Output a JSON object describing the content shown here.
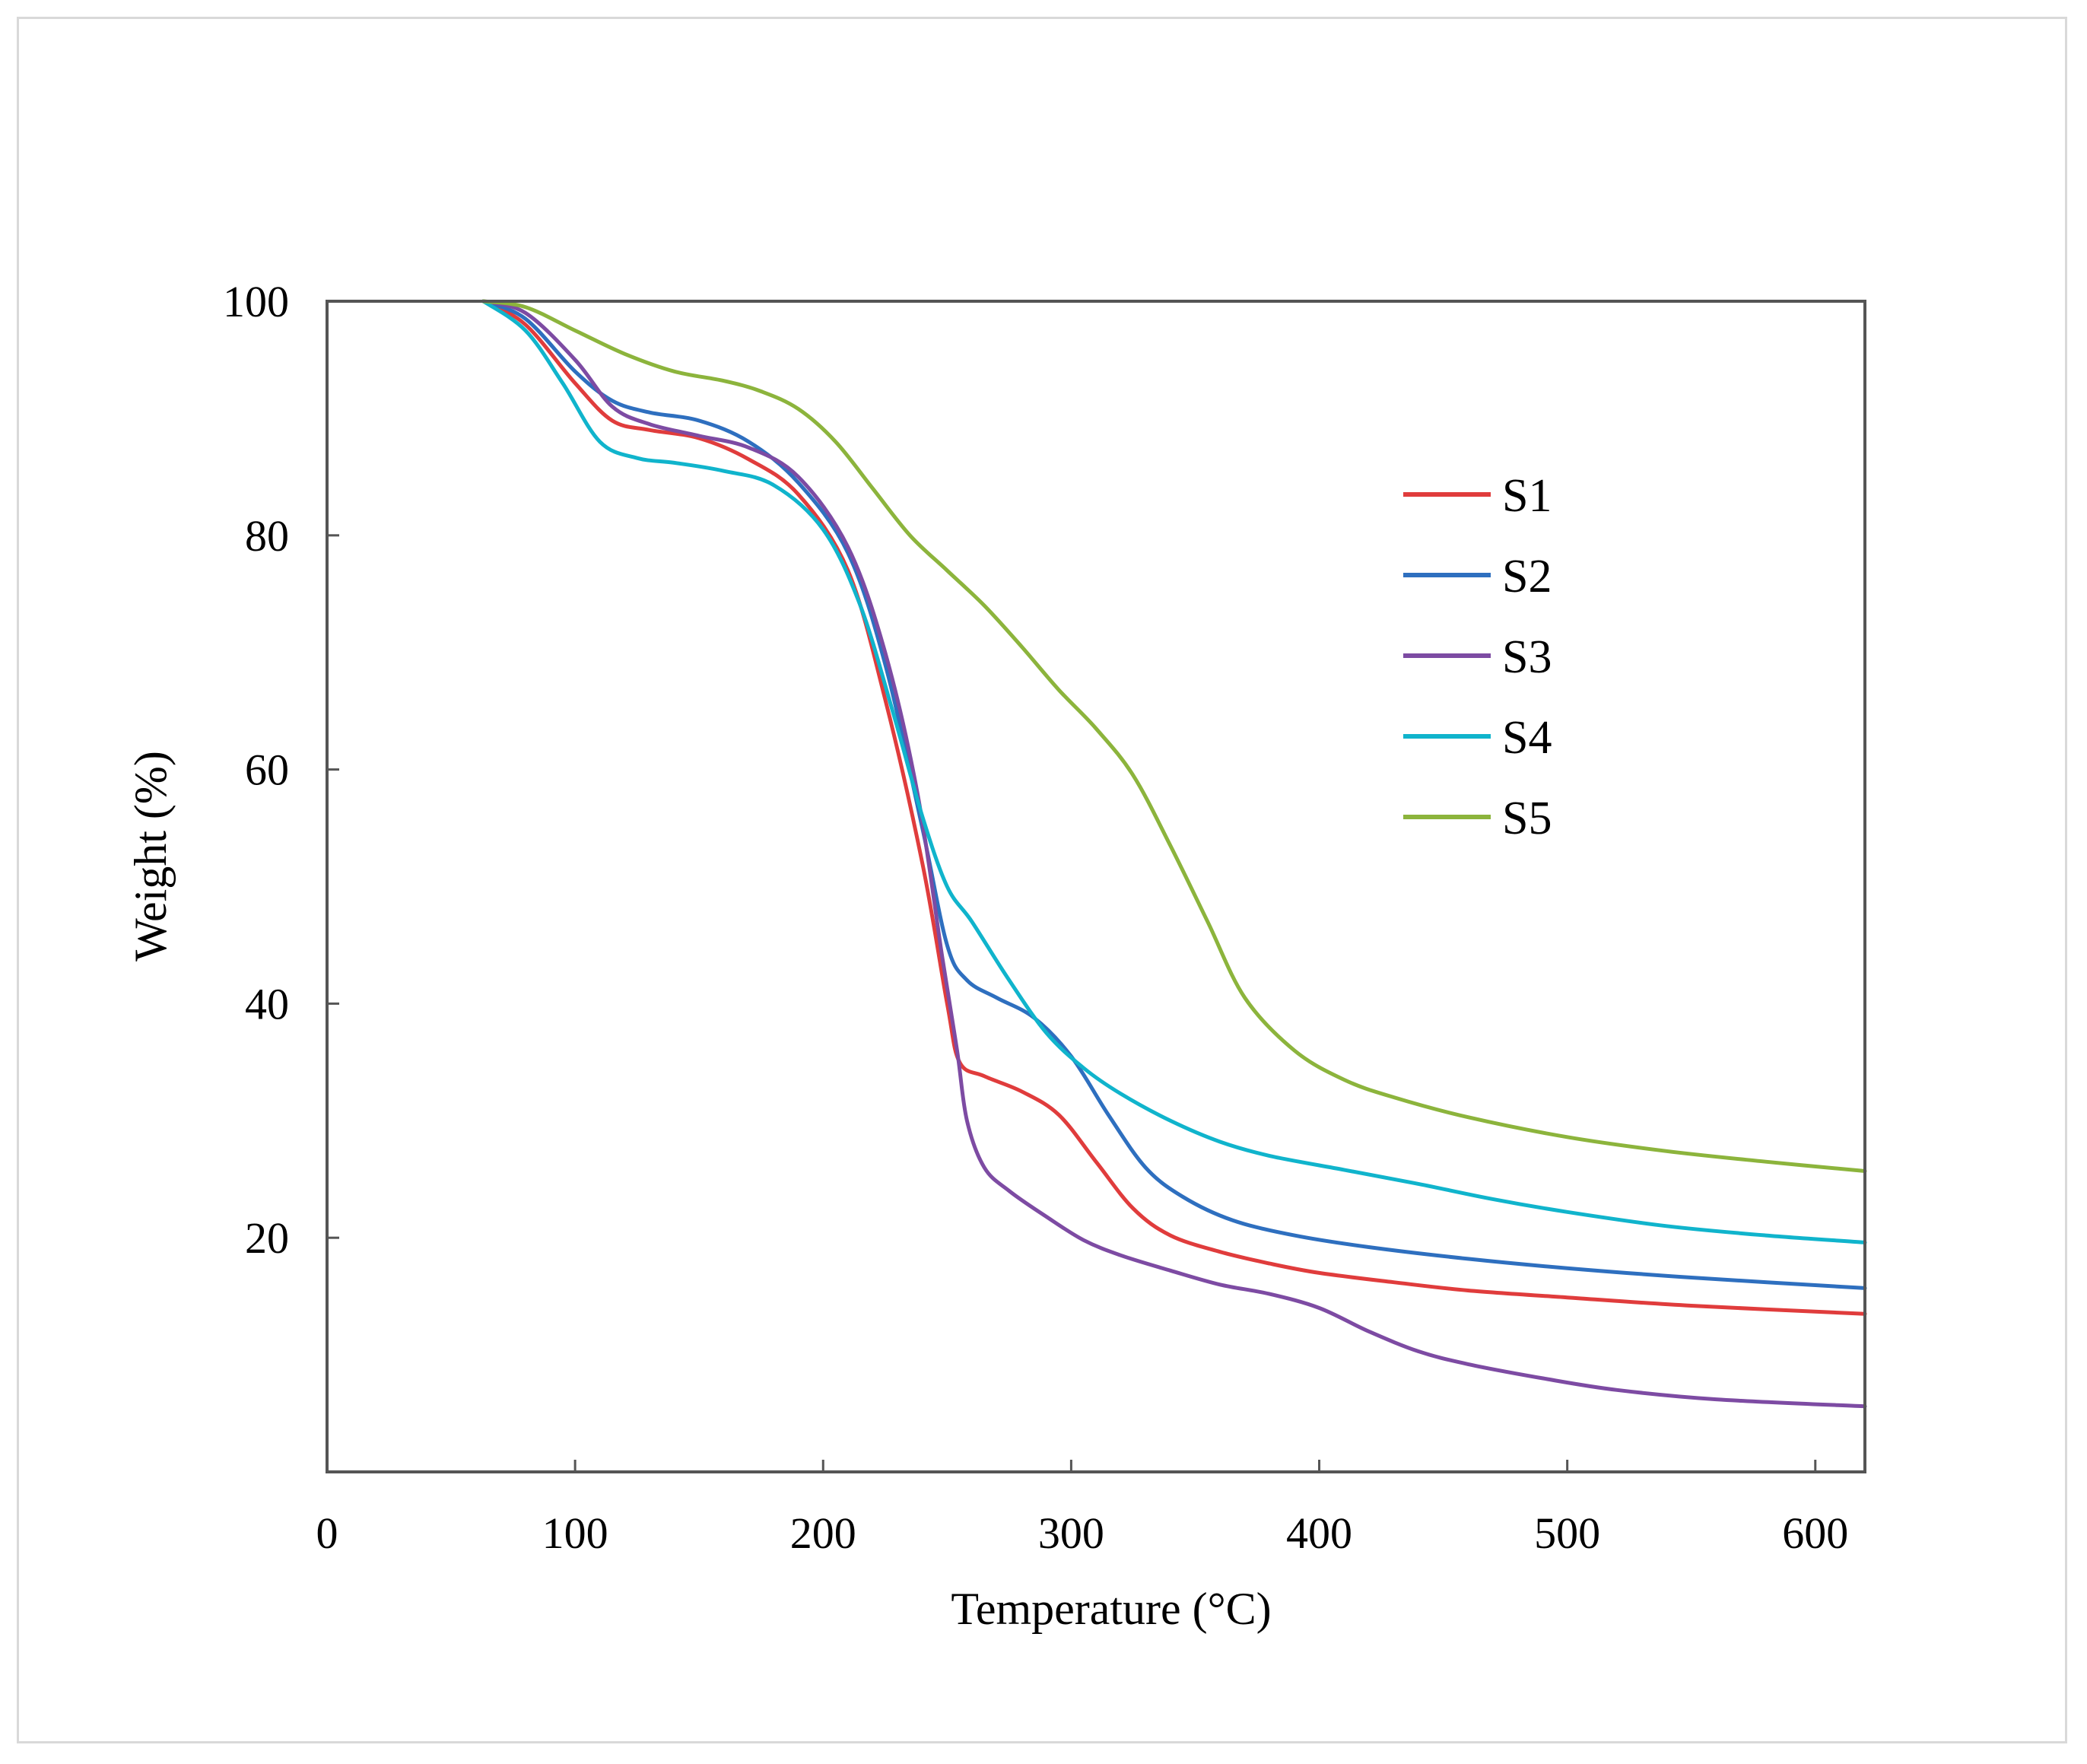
{
  "chart_data": {
    "type": "line",
    "title": "",
    "xlabel": "Temperature (°C)",
    "ylabel": "Weight (%)",
    "xlim": [
      0,
      620
    ],
    "ylim": [
      0,
      100
    ],
    "x_ticks": [
      "0",
      "100",
      "200",
      "300",
      "400",
      "500",
      "600"
    ],
    "y_ticks": [
      "20",
      "40",
      "60",
      "80",
      "100"
    ],
    "legend_position": "upper-right",
    "series": [
      {
        "name": "S1",
        "color": "#e03c3c",
        "points": [
          [
            63,
            100
          ],
          [
            80,
            98
          ],
          [
            100,
            93
          ],
          [
            115,
            89.8
          ],
          [
            130,
            89
          ],
          [
            150,
            88.3
          ],
          [
            170,
            86.5
          ],
          [
            190,
            83.5
          ],
          [
            210,
            77
          ],
          [
            225,
            66
          ],
          [
            240,
            52
          ],
          [
            250,
            40
          ],
          [
            255,
            35
          ],
          [
            265,
            33.8
          ],
          [
            280,
            32.5
          ],
          [
            295,
            30.5
          ],
          [
            310,
            26.5
          ],
          [
            325,
            22.5
          ],
          [
            340,
            20.2
          ],
          [
            360,
            18.8
          ],
          [
            380,
            17.8
          ],
          [
            400,
            17
          ],
          [
            430,
            16.2
          ],
          [
            460,
            15.5
          ],
          [
            500,
            14.9
          ],
          [
            550,
            14.2
          ],
          [
            620,
            13.5
          ]
        ]
      },
      {
        "name": "S2",
        "color": "#2e6fbf",
        "points": [
          [
            63,
            100
          ],
          [
            80,
            98.5
          ],
          [
            100,
            94
          ],
          [
            115,
            91.5
          ],
          [
            130,
            90.5
          ],
          [
            150,
            89.8
          ],
          [
            170,
            88
          ],
          [
            190,
            84.5
          ],
          [
            210,
            78.5
          ],
          [
            225,
            69
          ],
          [
            240,
            55
          ],
          [
            250,
            45
          ],
          [
            258,
            42
          ],
          [
            270,
            40.5
          ],
          [
            285,
            38.8
          ],
          [
            300,
            35.5
          ],
          [
            315,
            30.5
          ],
          [
            330,
            26
          ],
          [
            345,
            23.5
          ],
          [
            365,
            21.5
          ],
          [
            390,
            20.2
          ],
          [
            420,
            19.2
          ],
          [
            460,
            18.2
          ],
          [
            500,
            17.4
          ],
          [
            550,
            16.6
          ],
          [
            620,
            15.7
          ]
        ]
      },
      {
        "name": "S3",
        "color": "#7d4ba3",
        "points": [
          [
            63,
            100
          ],
          [
            80,
            99
          ],
          [
            100,
            95
          ],
          [
            115,
            91
          ],
          [
            130,
            89.5
          ],
          [
            150,
            88.5
          ],
          [
            170,
            87.5
          ],
          [
            190,
            85
          ],
          [
            210,
            79
          ],
          [
            225,
            70
          ],
          [
            238,
            58
          ],
          [
            248,
            44
          ],
          [
            254,
            36
          ],
          [
            258,
            30
          ],
          [
            265,
            26
          ],
          [
            275,
            24
          ],
          [
            290,
            21.8
          ],
          [
            305,
            19.8
          ],
          [
            320,
            18.5
          ],
          [
            340,
            17.2
          ],
          [
            360,
            16
          ],
          [
            380,
            15.2
          ],
          [
            400,
            14
          ],
          [
            420,
            12
          ],
          [
            440,
            10.3
          ],
          [
            460,
            9.2
          ],
          [
            490,
            8
          ],
          [
            520,
            7
          ],
          [
            560,
            6.2
          ],
          [
            620,
            5.6
          ]
        ]
      },
      {
        "name": "S4",
        "color": "#10b4cc",
        "points": [
          [
            63,
            100
          ],
          [
            80,
            97.5
          ],
          [
            95,
            93
          ],
          [
            110,
            88
          ],
          [
            125,
            86.6
          ],
          [
            140,
            86.2
          ],
          [
            160,
            85.5
          ],
          [
            180,
            84.3
          ],
          [
            200,
            80.5
          ],
          [
            215,
            74
          ],
          [
            228,
            65
          ],
          [
            240,
            56
          ],
          [
            250,
            50
          ],
          [
            260,
            47
          ],
          [
            275,
            42
          ],
          [
            290,
            37.5
          ],
          [
            305,
            34.5
          ],
          [
            320,
            32.3
          ],
          [
            340,
            30
          ],
          [
            360,
            28.2
          ],
          [
            380,
            27
          ],
          [
            410,
            25.8
          ],
          [
            440,
            24.6
          ],
          [
            470,
            23.3
          ],
          [
            500,
            22.2
          ],
          [
            540,
            21
          ],
          [
            580,
            20.2
          ],
          [
            620,
            19.6
          ]
        ]
      },
      {
        "name": "S5",
        "color": "#8cb43c",
        "points": [
          [
            63,
            100
          ],
          [
            80,
            99.5
          ],
          [
            100,
            97.5
          ],
          [
            120,
            95.5
          ],
          [
            140,
            94
          ],
          [
            160,
            93.2
          ],
          [
            175,
            92.3
          ],
          [
            190,
            90.8
          ],
          [
            205,
            88
          ],
          [
            220,
            84
          ],
          [
            235,
            80
          ],
          [
            250,
            77
          ],
          [
            265,
            74
          ],
          [
            280,
            70.5
          ],
          [
            295,
            66.8
          ],
          [
            310,
            63.5
          ],
          [
            325,
            59.5
          ],
          [
            340,
            53.5
          ],
          [
            355,
            47
          ],
          [
            370,
            40.5
          ],
          [
            390,
            36
          ],
          [
            410,
            33.5
          ],
          [
            430,
            32
          ],
          [
            460,
            30.3
          ],
          [
            500,
            28.6
          ],
          [
            540,
            27.4
          ],
          [
            580,
            26.5
          ],
          [
            620,
            25.7
          ]
        ]
      }
    ]
  }
}
